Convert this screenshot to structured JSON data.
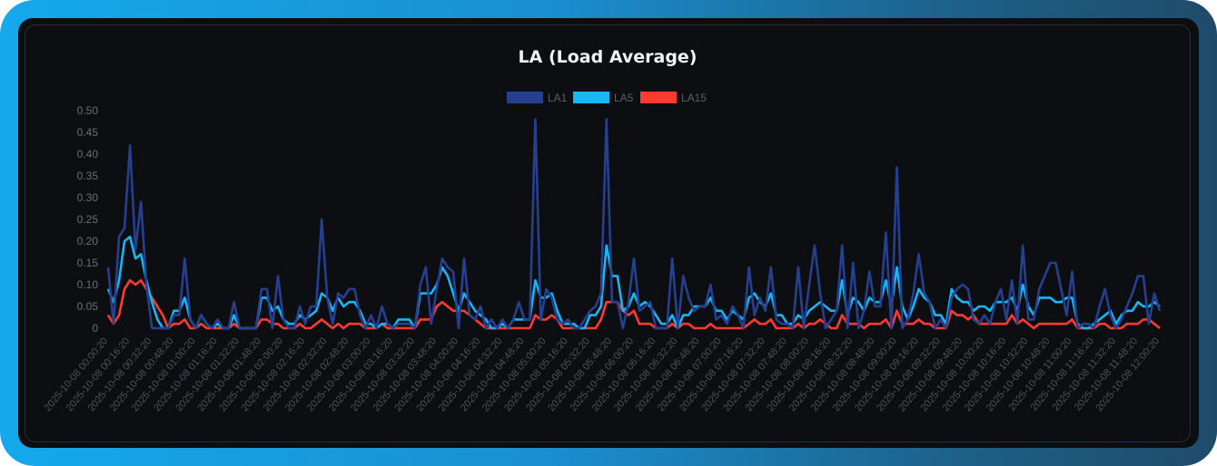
{
  "chart_data": {
    "type": "line",
    "title": "LA (Load Average)",
    "legend_position": "top",
    "grid": false,
    "ylim": [
      0,
      0.5
    ],
    "y_ticks": [
      "0",
      "0.05",
      "0.10",
      "0.15",
      "0.20",
      "0.25",
      "0.30",
      "0.35",
      "0.40",
      "0.45",
      "0.50"
    ],
    "x_tick_labels": [
      "2025-10-08 00:00:20",
      "2025-10-08 00:16:20",
      "2025-10-08 00:32:20",
      "2025-10-08 00:48:20",
      "2025-10-08 01:00:20",
      "2025-10-08 01:16:20",
      "2025-10-08 01:32:20",
      "2025-10-08 01:48:20",
      "2025-10-08 02:00:20",
      "2025-10-08 02:16:20",
      "2025-10-08 02:32:20",
      "2025-10-08 02:48:20",
      "2025-10-08 03:00:20",
      "2025-10-08 03:16:20",
      "2025-10-08 03:32:20",
      "2025-10-08 03:48:20",
      "2025-10-08 04:00:20",
      "2025-10-08 04:16:20",
      "2025-10-08 04:32:20",
      "2025-10-08 04:48:20",
      "2025-10-08 05:00:20",
      "2025-10-08 05:16:20",
      "2025-10-08 05:32:20",
      "2025-10-08 05:48:20",
      "2025-10-08 06:00:20",
      "2025-10-08 06:16:20",
      "2025-10-08 06:32:20",
      "2025-10-08 06:48:20",
      "2025-10-08 07:00:20",
      "2025-10-08 07:16:20",
      "2025-10-08 07:32:20",
      "2025-10-08 07:48:20",
      "2025-10-08 08:00:20",
      "2025-10-08 08:16:20",
      "2025-10-08 08:32:20",
      "2025-10-08 08:48:20",
      "2025-10-08 09:00:20",
      "2025-10-08 09:16:20",
      "2025-10-08 09:32:20",
      "2025-10-08 09:48:20",
      "2025-10-08 10:00:20",
      "2025-10-08 10:16:20",
      "2025-10-08 10:32:20",
      "2025-10-08 10:48:20",
      "2025-10-08 11:00:20",
      "2025-10-08 11:16:20",
      "2025-10-08 11:32:20",
      "2025-10-08 11:48:20",
      "2025-10-08 12:00:20"
    ],
    "series": [
      {
        "name": "LA1",
        "color": "#263f8f",
        "values": [
          0.14,
          0.01,
          0.21,
          0.23,
          0.42,
          0.18,
          0.29,
          0.1,
          0,
          0,
          0,
          0,
          0.03,
          0.03,
          0.16,
          0.02,
          0,
          0.03,
          0.01,
          0,
          0.02,
          0,
          0,
          0.06,
          0,
          0,
          0,
          0,
          0.09,
          0.09,
          0,
          0.12,
          0.02,
          0,
          0,
          0.05,
          0.01,
          0.05,
          0.05,
          0.25,
          0.07,
          0.01,
          0.08,
          0.07,
          0.09,
          0.09,
          0.03,
          0,
          0.03,
          0,
          0.05,
          0.01,
          0,
          0.01,
          0.01,
          0.01,
          0,
          0.1,
          0.14,
          0.01,
          0.09,
          0.16,
          0.14,
          0.13,
          0,
          0.16,
          0.03,
          0.02,
          0.05,
          0,
          0.02,
          0,
          0.02,
          0,
          0.02,
          0.06,
          0.02,
          0.02,
          0.48,
          0.02,
          0.09,
          0.07,
          0.02,
          0.01,
          0.02,
          0,
          0,
          0.02,
          0.04,
          0.05,
          0.08,
          0.48,
          0.06,
          0.06,
          0,
          0.06,
          0.16,
          0.04,
          0.05,
          0.06,
          0,
          0,
          0,
          0.16,
          0,
          0.12,
          0.07,
          0.04,
          0.05,
          0.05,
          0.1,
          0.02,
          0.03,
          0.01,
          0.05,
          0.03,
          0,
          0.14,
          0.03,
          0.07,
          0.04,
          0.14,
          0.02,
          0.01,
          0.01,
          0,
          0.14,
          0,
          0.1,
          0.19,
          0.08,
          0,
          0.02,
          0.04,
          0.19,
          0,
          0.15,
          0,
          0.04,
          0.13,
          0.05,
          0.05,
          0.22,
          0,
          0.37,
          0,
          0.02,
          0.08,
          0.17,
          0.08,
          0.06,
          0,
          0.02,
          0,
          0.07,
          0.09,
          0.1,
          0.09,
          0.02,
          0.01,
          0.03,
          0.01,
          0.06,
          0.09,
          0.02,
          0.11,
          0.01,
          0.19,
          0.02,
          0.02,
          0.09,
          0.12,
          0.15,
          0.15,
          0.09,
          0.03,
          0.13,
          0,
          0.01,
          0.01,
          0,
          0.05,
          0.09,
          0.03,
          0,
          0.02,
          0.05,
          0.08,
          0.12,
          0.12,
          0.01,
          0.08,
          0.04
        ]
      },
      {
        "name": "LA5",
        "color": "#17b6f5",
        "values": [
          0.09,
          0.06,
          0.11,
          0.2,
          0.21,
          0.16,
          0.17,
          0.11,
          0.06,
          0.02,
          0,
          0,
          0.04,
          0.04,
          0.07,
          0.02,
          0,
          0.03,
          0.01,
          0,
          0.01,
          0,
          0,
          0.03,
          0,
          0,
          0,
          0,
          0.07,
          0.07,
          0.04,
          0.05,
          0.02,
          0.01,
          0.01,
          0.03,
          0.02,
          0.03,
          0.04,
          0.08,
          0.07,
          0.04,
          0.07,
          0.05,
          0.06,
          0.06,
          0.04,
          0.01,
          0.01,
          0,
          0.01,
          0.01,
          0,
          0.02,
          0.02,
          0.02,
          0,
          0.08,
          0.08,
          0.08,
          0.1,
          0.14,
          0.12,
          0.08,
          0.04,
          0.08,
          0.06,
          0.04,
          0.03,
          0.02,
          0,
          0,
          0.01,
          0,
          0.02,
          0.02,
          0.02,
          0.02,
          0.11,
          0.07,
          0.07,
          0.08,
          0.04,
          0.01,
          0.01,
          0.01,
          0,
          0,
          0.03,
          0.03,
          0.05,
          0.19,
          0.12,
          0.12,
          0.04,
          0.05,
          0.08,
          0.05,
          0.06,
          0.05,
          0.03,
          0.01,
          0.01,
          0.03,
          0,
          0.03,
          0.03,
          0.05,
          0.05,
          0.05,
          0.07,
          0.04,
          0.04,
          0.02,
          0.04,
          0.03,
          0.02,
          0.07,
          0.08,
          0.06,
          0.05,
          0.08,
          0.03,
          0.03,
          0.01,
          0.01,
          0.03,
          0.02,
          0.04,
          0.05,
          0.06,
          0.05,
          0.04,
          0.04,
          0.11,
          0.03,
          0.07,
          0.06,
          0.04,
          0.07,
          0.06,
          0.06,
          0.11,
          0.05,
          0.14,
          0.05,
          0.02,
          0.05,
          0.09,
          0.07,
          0.06,
          0.03,
          0.03,
          0.01,
          0.09,
          0.07,
          0.06,
          0.06,
          0.04,
          0.05,
          0.05,
          0.04,
          0.06,
          0.06,
          0.06,
          0.07,
          0.04,
          0.1,
          0.05,
          0.03,
          0.07,
          0.07,
          0.07,
          0.06,
          0.06,
          0.07,
          0.07,
          0.01,
          0,
          0,
          0.01,
          0.02,
          0.03,
          0.04,
          0.01,
          0.03,
          0.04,
          0.04,
          0.06,
          0.05,
          0.05,
          0.06,
          0.05
        ]
      },
      {
        "name": "LA15",
        "color": "#ff3b30",
        "values": [
          0.03,
          0.01,
          0.03,
          0.09,
          0.11,
          0.1,
          0.11,
          0.09,
          0.07,
          0.05,
          0.03,
          0,
          0.01,
          0.01,
          0.02,
          0,
          0,
          0.01,
          0,
          0,
          0,
          0,
          0,
          0.01,
          0,
          0,
          0,
          0,
          0.02,
          0.02,
          0.01,
          0.01,
          0,
          0,
          0,
          0.01,
          0,
          0,
          0.01,
          0.02,
          0.01,
          0,
          0.01,
          0,
          0.01,
          0.01,
          0.01,
          0,
          0,
          0,
          0.01,
          0,
          0,
          0,
          0,
          0,
          0,
          0.02,
          0.02,
          0.02,
          0.05,
          0.06,
          0.05,
          0.04,
          0.04,
          0.04,
          0.03,
          0.02,
          0.01,
          0,
          0,
          0,
          0,
          0,
          0,
          0,
          0,
          0,
          0.03,
          0.02,
          0.02,
          0.03,
          0.02,
          0,
          0,
          0,
          0,
          0,
          0,
          0,
          0.02,
          0.06,
          0.06,
          0.06,
          0.04,
          0.03,
          0.04,
          0.01,
          0.01,
          0.01,
          0,
          0,
          0,
          0.01,
          0,
          0.01,
          0.01,
          0,
          0,
          0,
          0.01,
          0,
          0,
          0,
          0,
          0,
          0,
          0.01,
          0.02,
          0.01,
          0.01,
          0.02,
          0,
          0,
          0,
          0,
          0.01,
          0,
          0.01,
          0.01,
          0.02,
          0.01,
          0,
          0,
          0.03,
          0.01,
          0.01,
          0.01,
          0,
          0.01,
          0.01,
          0.01,
          0.02,
          0,
          0.04,
          0.01,
          0.01,
          0.01,
          0.02,
          0.01,
          0.01,
          0,
          0,
          0,
          0.04,
          0.03,
          0.03,
          0.02,
          0.03,
          0.01,
          0.01,
          0.01,
          0.01,
          0.01,
          0.01,
          0.03,
          0.01,
          0.02,
          0.01,
          0,
          0.01,
          0.01,
          0.01,
          0.01,
          0.01,
          0.01,
          0.02,
          0,
          0,
          0,
          0,
          0.01,
          0.01,
          0,
          0,
          0,
          0.01,
          0.01,
          0.01,
          0.02,
          0.02,
          0.01,
          0
        ]
      }
    ]
  }
}
